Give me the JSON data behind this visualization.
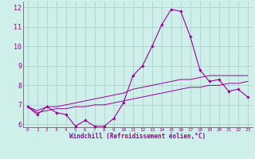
{
  "xlabel": "Windchill (Refroidissement éolien,°C)",
  "background_color": "#cff0ea",
  "grid_color": "#aacccc",
  "line_color": "#990099",
  "xlim": [
    -0.5,
    23.5
  ],
  "ylim": [
    5.85,
    12.3
  ],
  "yticks": [
    6,
    7,
    8,
    9,
    10,
    11,
    12
  ],
  "xticks": [
    0,
    1,
    2,
    3,
    4,
    5,
    6,
    7,
    8,
    9,
    10,
    11,
    12,
    13,
    14,
    15,
    16,
    17,
    18,
    19,
    20,
    21,
    22,
    23
  ],
  "hours": [
    0,
    1,
    2,
    3,
    4,
    5,
    6,
    7,
    8,
    9,
    10,
    11,
    12,
    13,
    14,
    15,
    16,
    17,
    18,
    19,
    20,
    21,
    22,
    23
  ],
  "windchill": [
    6.9,
    6.5,
    6.9,
    6.6,
    6.5,
    5.9,
    6.2,
    5.9,
    5.9,
    6.3,
    7.1,
    8.5,
    9.0,
    10.0,
    11.1,
    11.9,
    11.8,
    10.5,
    8.8,
    8.2,
    8.3,
    7.7,
    7.8,
    7.4
  ],
  "temp_min": [
    6.9,
    6.6,
    6.7,
    6.8,
    6.8,
    6.9,
    6.9,
    7.0,
    7.0,
    7.1,
    7.2,
    7.3,
    7.4,
    7.5,
    7.6,
    7.7,
    7.8,
    7.9,
    7.9,
    8.0,
    8.0,
    8.1,
    8.1,
    8.2
  ],
  "temp_max": [
    6.9,
    6.7,
    6.9,
    6.9,
    7.0,
    7.1,
    7.2,
    7.3,
    7.4,
    7.5,
    7.6,
    7.8,
    7.9,
    8.0,
    8.1,
    8.2,
    8.3,
    8.3,
    8.4,
    8.5,
    8.5,
    8.5,
    8.5,
    8.5
  ],
  "xlabel_fontsize": 5.5,
  "ytick_fontsize": 6.0,
  "xtick_fontsize": 4.3
}
